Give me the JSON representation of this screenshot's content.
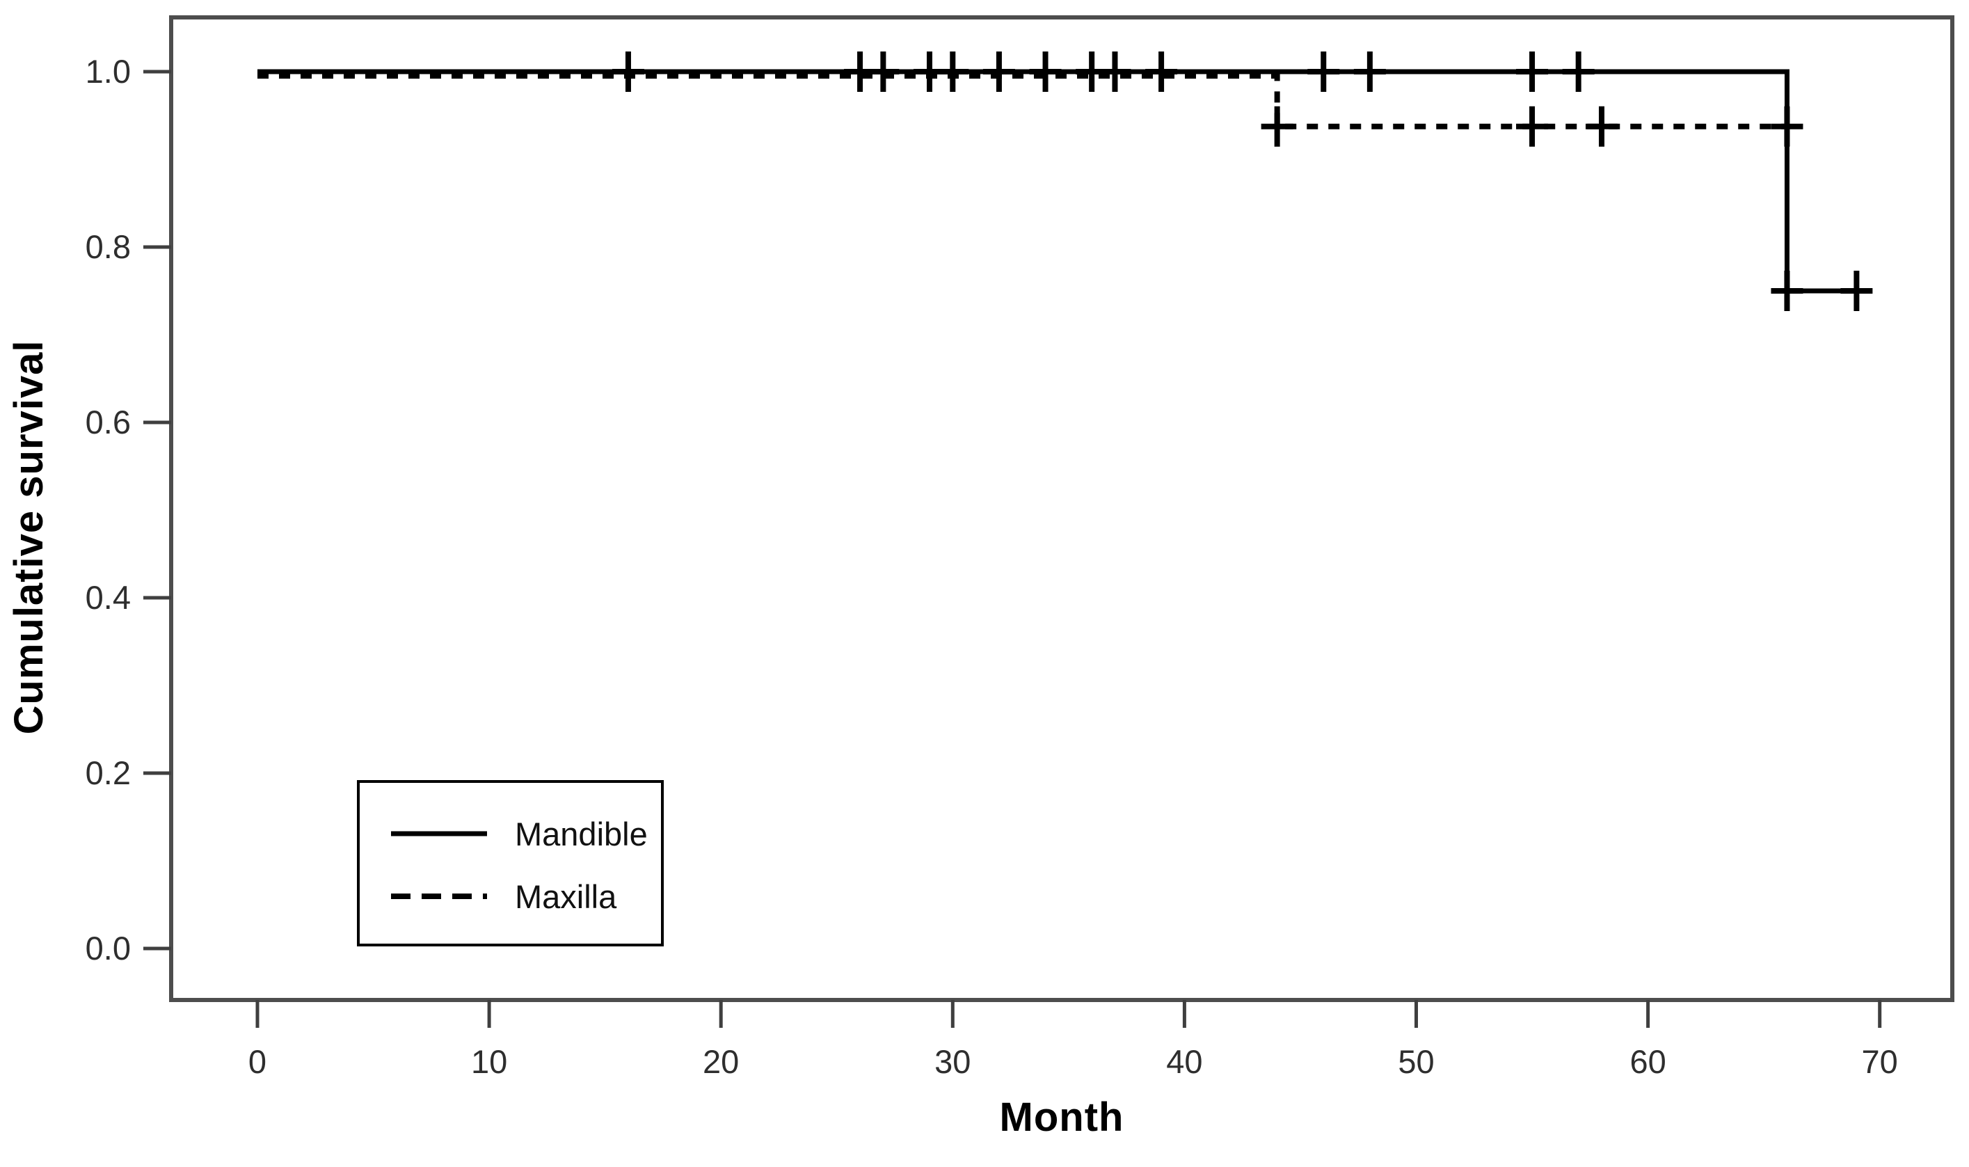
{
  "chart_data": {
    "type": "line",
    "subtype": "kaplan-meier-step-curve",
    "title": "",
    "xlabel": "Month",
    "ylabel": "Cumulative survival",
    "x_ticks": [
      "0",
      "10",
      "20",
      "30",
      "40",
      "50",
      "60",
      "70"
    ],
    "y_ticks": [
      "0.0",
      "0.2",
      "0.4",
      "0.6",
      "0.8",
      "1.0"
    ],
    "xlim": [
      -3.7,
      73.1
    ],
    "ylim": [
      -0.06,
      1.06
    ],
    "grid": false,
    "curve_color": "#000000",
    "frame_color": "#4d4d4d",
    "tick_text_color": "#2e2e2e",
    "series": [
      {
        "name": "Mandible",
        "line_style": "solid",
        "steps": [
          [
            0,
            1.0
          ],
          [
            66,
            1.0
          ],
          [
            66,
            0.75
          ],
          [
            69,
            0.75
          ]
        ],
        "censor_marks": [
          [
            16,
            1.0
          ],
          [
            26,
            1.0
          ],
          [
            27,
            1.0
          ],
          [
            29,
            1.0
          ],
          [
            30,
            1.0
          ],
          [
            32,
            1.0
          ],
          [
            34,
            1.0
          ],
          [
            36,
            1.0
          ],
          [
            37,
            1.0
          ],
          [
            39,
            1.0
          ],
          [
            46,
            1.0
          ],
          [
            48,
            1.0
          ],
          [
            55,
            1.0
          ],
          [
            57,
            1.0
          ],
          [
            66,
            0.75
          ],
          [
            69,
            0.75
          ]
        ]
      },
      {
        "name": "Maxilla",
        "line_style": "dashed",
        "steps": [
          [
            0,
            1.0
          ],
          [
            44,
            1.0
          ],
          [
            44,
            0.9375
          ],
          [
            66,
            0.9375
          ]
        ],
        "censor_marks": [
          [
            44,
            0.9375
          ],
          [
            55,
            0.9375
          ],
          [
            58,
            0.9375
          ],
          [
            66,
            0.9375
          ]
        ]
      }
    ],
    "legend": {
      "position": "lower-left",
      "entries": [
        {
          "label": "Mandible",
          "style": "solid"
        },
        {
          "label": "Maxilla",
          "style": "dashed"
        }
      ]
    }
  }
}
